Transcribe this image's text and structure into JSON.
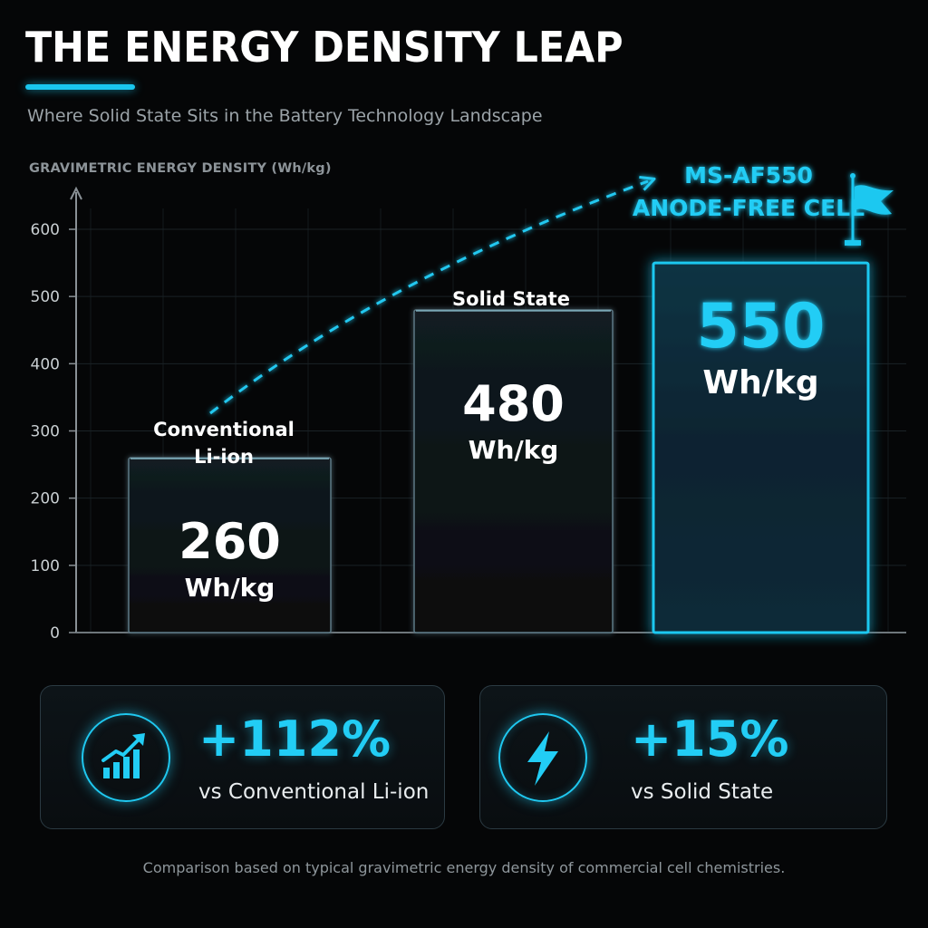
{
  "header": {
    "title": "THE ENERGY DENSITY LEAP",
    "subtitle": "Where Solid State Sits in the Battery Technology Landscape"
  },
  "chart_data": {
    "type": "bar",
    "ylabel": "GRAVIMETRIC ENERGY DENSITY (Wh/kg)",
    "ylim": [
      0,
      600
    ],
    "yticks": [
      0,
      100,
      200,
      300,
      400,
      500,
      600
    ],
    "grid": true,
    "categories": [
      "Conventional Li-ion",
      "Solid State",
      "MS-AF550 ANODE-FREE CELL"
    ],
    "category_lines": [
      [
        "Conventional",
        "Li-ion"
      ],
      [
        "Solid State"
      ],
      [
        "MS-AF550",
        "ANODE-FREE CELL"
      ]
    ],
    "values": [
      260,
      480,
      550
    ],
    "value_labels": [
      "260",
      "480",
      "550"
    ],
    "unit": "Wh/kg",
    "highlight_index": 2
  },
  "stats": [
    {
      "value": "+112%",
      "caption": "vs Conventional Li-ion",
      "icon": "growth-chart-icon"
    },
    {
      "value": "+15%",
      "caption": "vs Solid State",
      "icon": "lightning-bolt-icon"
    }
  ],
  "footnote": "Comparison based on typical gravimetric energy density of commercial cell chemistries.",
  "colors": {
    "accent": "#1fc8f0",
    "background": "#050607",
    "bar_fill": "#0d1418",
    "text_muted": "#8e969b"
  }
}
